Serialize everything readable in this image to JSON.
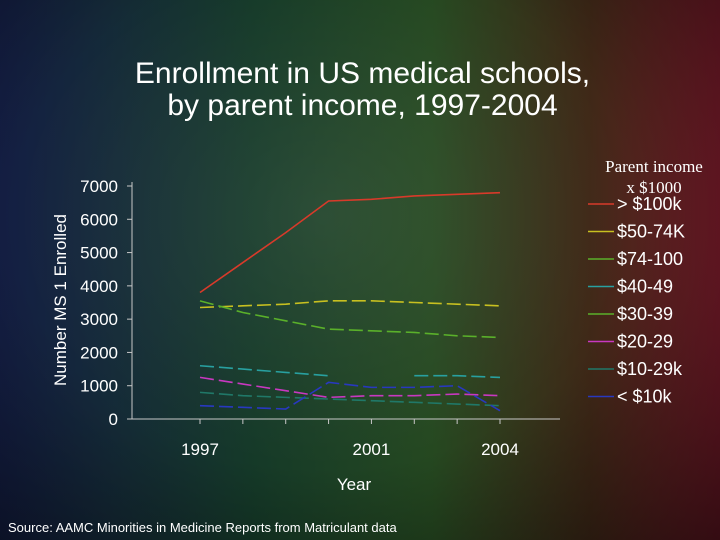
{
  "title": "Enrollment in US medical schools,\nby parent income, 1997-2004",
  "legend_title": "Parent income\nx $1000",
  "source": "Source: AAMC Minorities in Medicine Reports from Matriculant data",
  "chart_data": {
    "type": "line",
    "xlabel": "Year",
    "ylabel": "Number MS 1 Enrolled",
    "x_tick_labels": [
      "1997",
      "2001",
      "2004"
    ],
    "x": [
      1997,
      1998,
      1999,
      2000,
      2001,
      2002,
      2003,
      2004
    ],
    "y_ticks": [
      "0",
      "1000",
      "2000",
      "3000",
      "4000",
      "5000",
      "6000",
      "7000"
    ],
    "ylim": [
      0,
      7000
    ],
    "grid": false,
    "legend_position": "right",
    "series": [
      {
        "name": "> $100k",
        "color": "#d83a2a",
        "dash": "solid",
        "values": [
          3800,
          4700,
          5600,
          6550,
          6600,
          6700,
          6750,
          6800
        ]
      },
      {
        "name": "$50-74K",
        "color": "#c8c020",
        "dash": "dashed",
        "values": [
          3350,
          3400,
          3450,
          3550,
          3550,
          3500,
          3450,
          3400
        ]
      },
      {
        "name": "$74-100",
        "color": "#5ab02a",
        "dash": "dashed",
        "values": [
          3550,
          3200,
          2950,
          2700,
          2650,
          2600,
          2500,
          2450
        ]
      },
      {
        "name": "$40-49",
        "color": "#28a0a0",
        "dash": "dashed",
        "values": [
          1600,
          1500,
          1400,
          1300,
          null,
          1300,
          1300,
          1250
        ]
      },
      {
        "name": "$30-39",
        "color": "#5ab02a",
        "dash": "dashed",
        "values": [
          null,
          null,
          null,
          null,
          null,
          null,
          null,
          null
        ]
      },
      {
        "name": "$20-29",
        "color": "#c838c0",
        "dash": "dashed",
        "values": [
          1250,
          1050,
          850,
          650,
          700,
          700,
          750,
          700
        ]
      },
      {
        "name": "$10-29k",
        "color": "#207868",
        "dash": "dashed",
        "values": [
          800,
          700,
          650,
          600,
          550,
          500,
          450,
          400
        ]
      },
      {
        "name": "< $10k",
        "color": "#2838c0",
        "dash": "dashed",
        "values": [
          400,
          350,
          300,
          1100,
          950,
          950,
          1000,
          250
        ]
      }
    ]
  }
}
